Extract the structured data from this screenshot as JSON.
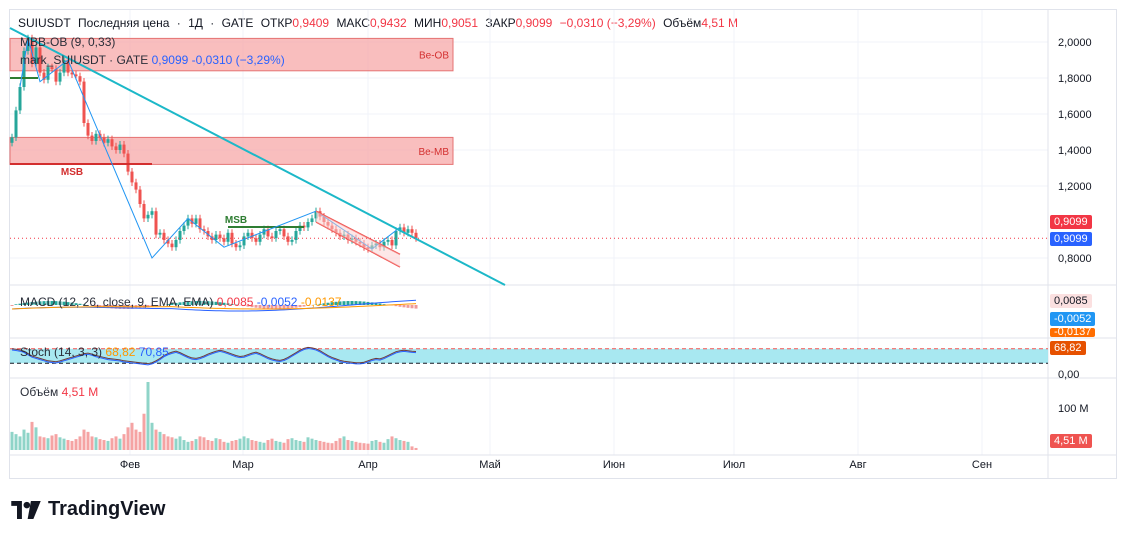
{
  "header": {
    "symbol": "SUIUSDT",
    "price_kind": "Последняя цена",
    "interval": "1Д",
    "exchange": "GATE",
    "open_label": "ОТКР",
    "open": "0,9409",
    "high_label": "МАКС",
    "high": "0,9432",
    "low_label": "МИН",
    "low": "0,9051",
    "close_label": "ЗАКР",
    "close": "0,9099",
    "change": "−0,0310 (−3,29%)",
    "volume_label": "Объём",
    "volume": "4,51 M"
  },
  "indicator_legends": {
    "ob": "MBB-OB (9, 0,33)",
    "mark": "mark_SUIUSDT · GATE",
    "mark_value": "0,9099",
    "mark_change": "-0,0310 (−3,29%)",
    "macd": "MACD (12, 26, close, 9, EMA, EMA)",
    "macd_hist": "0,0085",
    "macd_line": "-0,0052",
    "macd_signal": "-0,0137",
    "stoch": "Stoch (14, 3, 3)",
    "stoch_k": "68,82",
    "stoch_d": "70,85",
    "volume_label": "Объём",
    "volume_value": "4,51 M"
  },
  "zones": [
    {
      "label": "Be-OB",
      "top": 2.02,
      "bottom": 1.84
    },
    {
      "label": "Be-MB",
      "top": 1.47,
      "bottom": 1.32
    }
  ],
  "annotations": {
    "msb_1": "MSB",
    "msb_2": "MSB"
  },
  "price_axis_ticks": [
    "2,0000",
    "1,8000",
    "1,6000",
    "1,4000",
    "1,2000",
    "0,8000"
  ],
  "price_tick_values": [
    2.0,
    1.8,
    1.6,
    1.4,
    1.2,
    0.8
  ],
  "price_badges": {
    "last": "0,9099",
    "mark": "0,9099"
  },
  "macd_badges": [
    "0,0085",
    "-0,0052",
    "-0,0137"
  ],
  "stoch_axis": {
    "tick": "0,00",
    "badge": "68,82",
    "band": [
      20,
      80
    ]
  },
  "volume_axis": {
    "tick": "100 M",
    "badge": "4,51 M"
  },
  "time_axis": [
    "Фев",
    "Мар",
    "Апр",
    "Май",
    "Июн",
    "Июл",
    "Авг",
    "Сен"
  ],
  "branding": "TradingView",
  "colors": {
    "up": "#26a69a",
    "down": "#ef5350",
    "trendline": "#1cb8c8",
    "zone": "#f7a8a8",
    "mark_badge": "#2962ff",
    "last_badge": "#f23645"
  },
  "chart_data": {
    "type": "candlestick",
    "interval": "1D",
    "ylim": [
      0.62,
      2.1
    ],
    "close": [
      1.47,
      1.62,
      1.75,
      1.95,
      2.02,
      1.88,
      1.97,
      1.83,
      1.79,
      1.86,
      1.85,
      1.78,
      1.83,
      1.9,
      1.83,
      1.82,
      1.81,
      1.78,
      1.55,
      1.48,
      1.45,
      1.49,
      1.47,
      1.44,
      1.46,
      1.42,
      1.4,
      1.43,
      1.38,
      1.28,
      1.22,
      1.18,
      1.1,
      1.02,
      1.04,
      1.06,
      0.93,
      0.94,
      0.9,
      0.88,
      0.86,
      0.9,
      0.95,
      0.98,
      1.02,
      0.99,
      1.02,
      0.96,
      0.95,
      0.92,
      0.9,
      0.93,
      0.91,
      0.89,
      0.94,
      0.88,
      0.86,
      0.87,
      0.92,
      0.94,
      0.91,
      0.89,
      0.93,
      0.96,
      0.92,
      0.91,
      0.95,
      0.96,
      0.92,
      0.89,
      0.9,
      0.95,
      0.98,
      0.97,
      1.0,
      1.02,
      1.06,
      1.03,
      1.0,
      0.98,
      0.96,
      0.94,
      0.92,
      0.93,
      0.9,
      0.91,
      0.89,
      0.88,
      0.86,
      0.85,
      0.87,
      0.88,
      0.86,
      0.89,
      0.9,
      0.87,
      0.95,
      0.97,
      0.94,
      0.96,
      0.94,
      0.91
    ],
    "volume_millions": [
      40,
      35,
      30,
      45,
      38,
      62,
      50,
      30,
      28,
      26,
      32,
      35,
      28,
      25,
      22,
      20,
      24,
      30,
      45,
      40,
      30,
      28,
      24,
      22,
      20,
      26,
      30,
      25,
      35,
      50,
      60,
      45,
      40,
      80,
      150,
      60,
      45,
      40,
      35,
      30,
      28,
      25,
      30,
      22,
      18,
      20,
      24,
      30,
      28,
      22,
      20,
      26,
      24,
      18,
      16,
      20,
      22,
      25,
      30,
      26,
      22,
      20,
      18,
      16,
      22,
      25,
      20,
      18,
      16,
      24,
      26,
      22,
      20,
      18,
      28,
      25,
      22,
      20,
      18,
      16,
      15,
      20,
      26,
      30,
      22,
      20,
      18,
      16,
      15,
      14,
      20,
      22,
      18,
      16,
      24,
      30,
      26,
      22,
      20,
      18,
      8,
      4.51
    ],
    "stoch_k": [
      80,
      78,
      75,
      70,
      60,
      50,
      45,
      40,
      35,
      30,
      28,
      26,
      30,
      35,
      40,
      45,
      50,
      55,
      60,
      62,
      58,
      52,
      48,
      44,
      40,
      38,
      36,
      34,
      30,
      28,
      26,
      24,
      22,
      20,
      18,
      22,
      30,
      40,
      52,
      60,
      66,
      70,
      64,
      56,
      48,
      42,
      40,
      44,
      50,
      58,
      64,
      70,
      74,
      70,
      64,
      58,
      52,
      48,
      50,
      56,
      62,
      66,
      60,
      52,
      44,
      38,
      34,
      32,
      36,
      44,
      54,
      64,
      74,
      82,
      86,
      84,
      80,
      72,
      62,
      52,
      44,
      38,
      32,
      28,
      26,
      24,
      22,
      22,
      24,
      30,
      36,
      40,
      38,
      44,
      52,
      60,
      68,
      72,
      74,
      72,
      70,
      68.82
    ]
  }
}
